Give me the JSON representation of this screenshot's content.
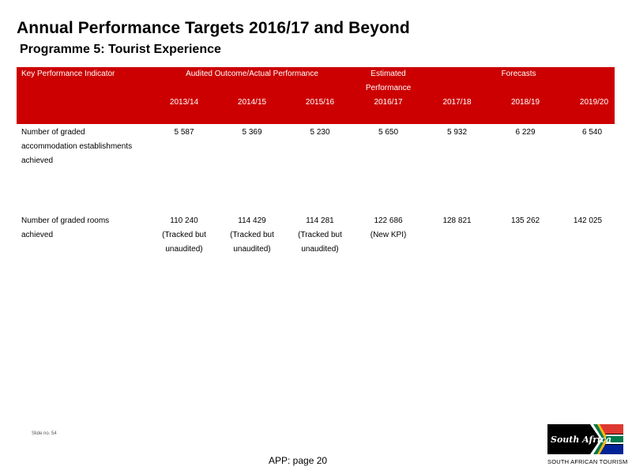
{
  "title": "Annual Performance Targets 2016/17 and Beyond",
  "subtitle": "Programme 5: Tourist Experience",
  "table": {
    "header": {
      "kpi_label": "Key Performance Indicator",
      "audited_label": "Audited Outcome/Actual Performance",
      "estimated_line1": "Estimated",
      "estimated_line2": "Performance",
      "forecasts_label": "Forecasts",
      "years": [
        "2013/14",
        "2014/15",
        "2015/16",
        "2016/17",
        "2017/18",
        "2018/19",
        "2019/20"
      ]
    },
    "rows": [
      {
        "indicator_lines": [
          "Number of graded",
          "accommodation establishments",
          "achieved"
        ],
        "values": [
          [
            "5 587"
          ],
          [
            "5 369"
          ],
          [
            "5 230"
          ],
          [
            "5 650"
          ],
          [
            "5 932"
          ],
          [
            "6 229"
          ],
          [
            "6 540"
          ]
        ]
      },
      {
        "indicator_lines": [
          "Number of graded rooms",
          "achieved"
        ],
        "values": [
          [
            "110 240",
            "(Tracked but",
            "unaudited)"
          ],
          [
            "114 429",
            "(Tracked but",
            "unaudited)"
          ],
          [
            "114 281",
            "(Tracked but",
            "unaudited)"
          ],
          [
            "122 686",
            "(New KPI)"
          ],
          [
            "128 821"
          ],
          [
            "135 262"
          ],
          [
            "142 025"
          ]
        ]
      }
    ]
  },
  "slide_number": "Slide no. 54",
  "footer_page": "APP: page 20",
  "logo": {
    "script_text": "South Africa",
    "caption": "SOUTH AFRICAN TOURISM",
    "colors": {
      "black": "#000000",
      "green": "#007a4d",
      "gold": "#ffb612",
      "red": "#de3831",
      "blue": "#002395",
      "white": "#ffffff"
    }
  },
  "colors": {
    "header_bg": "#cc0000",
    "header_text": "#ffffff",
    "body_text": "#000000"
  }
}
